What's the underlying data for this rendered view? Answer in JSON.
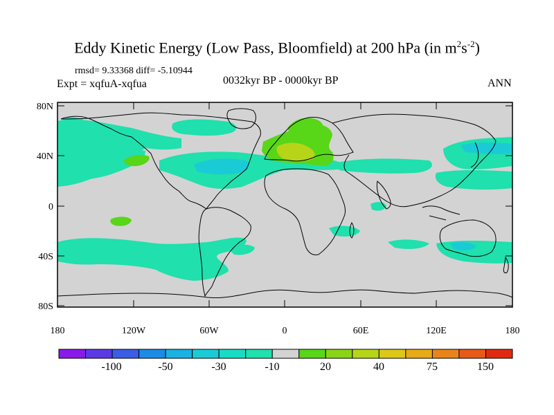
{
  "header": {
    "title": "Eddy Kinetic Energy (Low Pass, Bloomfield) at 200 hPa (in m",
    "title_sup1": "2",
    "title_mid": "s",
    "title_sup2": "-2",
    "title_end": ")",
    "stats": "rmsd= 9.33368 diff= -5.10944",
    "experiment": "Expt = xqfuA-xqfua",
    "period": "0032kyr BP - 0000kyr BP",
    "season": "ANN"
  },
  "map": {
    "background_color": "#d3d3d3",
    "lat_labels": [
      "80N",
      "40N",
      "0",
      "40S",
      "80S"
    ],
    "lon_labels": [
      "180",
      "120W",
      "60W",
      "0",
      "60E",
      "120E",
      "180"
    ],
    "regions": [
      {
        "name": "north-pacific-band",
        "level": "-10"
      },
      {
        "name": "north-atlantic-band",
        "level": "-10"
      },
      {
        "name": "north-atlantic-core",
        "level": "-30"
      },
      {
        "name": "europe-positive",
        "level": "20"
      },
      {
        "name": "mediterranean-positive",
        "level": "40"
      },
      {
        "name": "southern-ocean-band",
        "level": "-10"
      },
      {
        "name": "australia-band",
        "level": "-10"
      }
    ]
  },
  "colorbar": {
    "labels": [
      "-100",
      "-50",
      "-30",
      "-10",
      "20",
      "40",
      "75",
      "150"
    ],
    "colors": [
      "#8a1ae8",
      "#5c3ae3",
      "#3a5de6",
      "#1a8ce6",
      "#1ab2e0",
      "#1acbd6",
      "#1adbc4",
      "#20e0ad",
      "#d3d3d3",
      "#58d618",
      "#8ad418",
      "#b8d418",
      "#dcc818",
      "#e8aa18",
      "#e88418",
      "#e85a18",
      "#e02a10"
    ]
  }
}
